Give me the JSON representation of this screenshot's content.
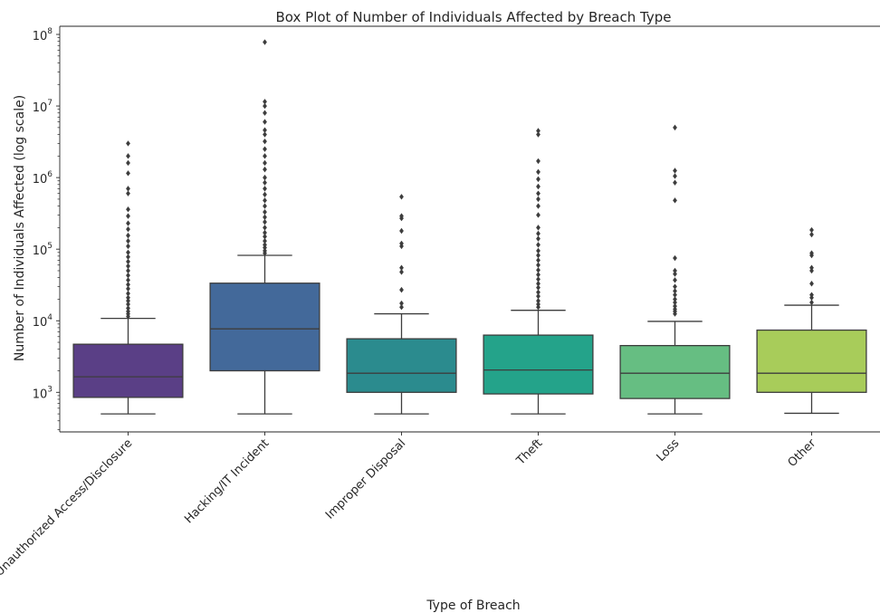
{
  "chart_data": {
    "type": "box",
    "title": "Box Plot of Number of Individuals Affected by Breach Type",
    "xlabel": "Type of Breach",
    "ylabel": "Number of Individuals Affected (log scale)",
    "yscale": "log",
    "ylim": [
      280,
      130000000
    ],
    "yticks": [
      {
        "value": 1000,
        "base": "10",
        "exp": "3"
      },
      {
        "value": 10000,
        "base": "10",
        "exp": "4"
      },
      {
        "value": 100000,
        "base": "10",
        "exp": "5"
      },
      {
        "value": 1000000,
        "base": "10",
        "exp": "6"
      },
      {
        "value": 10000000,
        "base": "10",
        "exp": "7"
      },
      {
        "value": 100000000,
        "base": "10",
        "exp": "8"
      }
    ],
    "grid": false,
    "legend": "none",
    "categories": [
      "Unauthorized Access/Disclosure",
      "Hacking/IT Incident",
      "Improper Disposal",
      "Theft",
      "Loss",
      "Other"
    ],
    "colors": [
      "#5a3f86",
      "#43699a",
      "#2b8b8e",
      "#24a38a",
      "#66be82",
      "#a8cc5a"
    ],
    "boxes": [
      {
        "category": "Unauthorized Access/Disclosure",
        "whisker_low": 500,
        "q1": 850,
        "median": 1650,
        "q3": 4700,
        "whisker_high": 10800,
        "outliers": [
          11500,
          12500,
          13500,
          15000,
          17000,
          19000,
          21000,
          24000,
          28000,
          32000,
          37000,
          43000,
          50000,
          58000,
          67000,
          78000,
          90000,
          110000,
          130000,
          155000,
          190000,
          230000,
          290000,
          360000,
          600000,
          700000,
          1150000,
          1600000,
          2000000,
          3000000
        ]
      },
      {
        "category": "Hacking/IT Incident",
        "whisker_low": 500,
        "q1": 2000,
        "median": 7700,
        "q3": 33500,
        "whisker_high": 82000,
        "outliers": [
          88000,
          95000,
          105000,
          115000,
          130000,
          150000,
          170000,
          200000,
          240000,
          280000,
          330000,
          400000,
          480000,
          580000,
          700000,
          850000,
          1000000,
          1300000,
          1600000,
          2000000,
          2500000,
          3200000,
          4000000,
          4600000,
          6000000,
          8000000,
          10000000,
          11500000,
          78000000
        ]
      },
      {
        "category": "Improper Disposal",
        "whisker_low": 500,
        "q1": 1000,
        "median": 1850,
        "q3": 5600,
        "whisker_high": 12500,
        "outliers": [
          15500,
          17500,
          27000,
          48000,
          55000,
          110000,
          120000,
          180000,
          270000,
          290000,
          540000
        ]
      },
      {
        "category": "Theft",
        "whisker_low": 500,
        "q1": 950,
        "median": 2050,
        "q3": 6300,
        "whisker_high": 14000,
        "outliers": [
          15500,
          17000,
          19000,
          22000,
          25000,
          29000,
          33000,
          38000,
          44000,
          51000,
          60000,
          70000,
          82000,
          95000,
          115000,
          140000,
          165000,
          200000,
          300000,
          400000,
          500000,
          600000,
          750000,
          950000,
          1200000,
          1700000,
          4000000,
          4500000
        ]
      },
      {
        "category": "Loss",
        "whisker_low": 500,
        "q1": 820,
        "median": 1850,
        "q3": 4500,
        "whisker_high": 9800,
        "outliers": [
          12500,
          13500,
          14500,
          16000,
          18000,
          20000,
          23000,
          26000,
          30000,
          37000,
          45000,
          50000,
          75000,
          480000,
          850000,
          1050000,
          1250000,
          5000000
        ]
      },
      {
        "category": "Other",
        "whisker_low": 510,
        "q1": 1000,
        "median": 1850,
        "q3": 7400,
        "whisker_high": 16500,
        "outliers": [
          18000,
          21000,
          23000,
          33000,
          50000,
          55000,
          82000,
          88000,
          160000,
          185000
        ]
      }
    ]
  }
}
